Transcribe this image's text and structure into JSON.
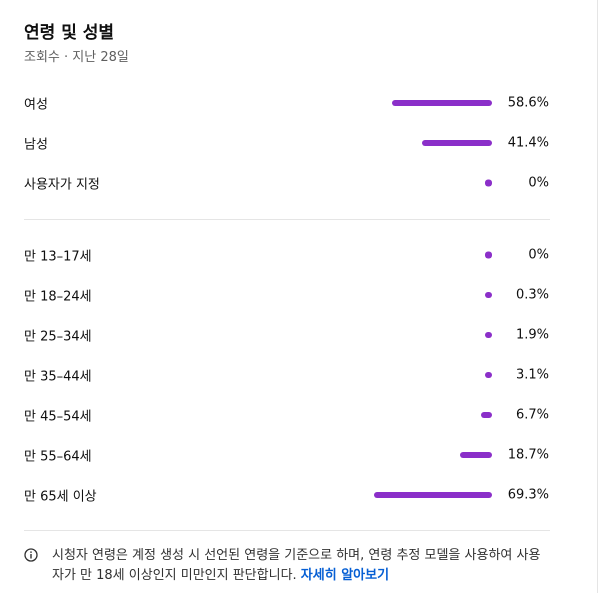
{
  "header": {
    "title": "연령 및 성별",
    "subtitle": "조회수 · 지난 28일"
  },
  "gender": [
    {
      "label": "여성",
      "value": 58.6,
      "value_label": "58.6%"
    },
    {
      "label": "남성",
      "value": 41.4,
      "value_label": "41.4%"
    },
    {
      "label": "사용자가 지정",
      "value": 0,
      "value_label": "0%"
    }
  ],
  "age": [
    {
      "label": "만 13–17세",
      "value": 0,
      "value_label": "0%"
    },
    {
      "label": "만 18–24세",
      "value": 0.3,
      "value_label": "0.3%"
    },
    {
      "label": "만 25–34세",
      "value": 1.9,
      "value_label": "1.9%"
    },
    {
      "label": "만 35–44세",
      "value": 3.1,
      "value_label": "3.1%"
    },
    {
      "label": "만 45–54세",
      "value": 6.7,
      "value_label": "6.7%"
    },
    {
      "label": "만 55–64세",
      "value": 18.7,
      "value_label": "18.7%"
    },
    {
      "label": "만 65세 이상",
      "value": 69.3,
      "value_label": "69.3%"
    }
  ],
  "note": {
    "text": "시청자 연령은 계정 생성 시 선언된 연령을 기준으로 하며, 연령 추정 모델을 사용하여 사용자가 만 18세 이상인지 미만인지 판단합니다.",
    "link": "자세히 알아보기"
  }
}
